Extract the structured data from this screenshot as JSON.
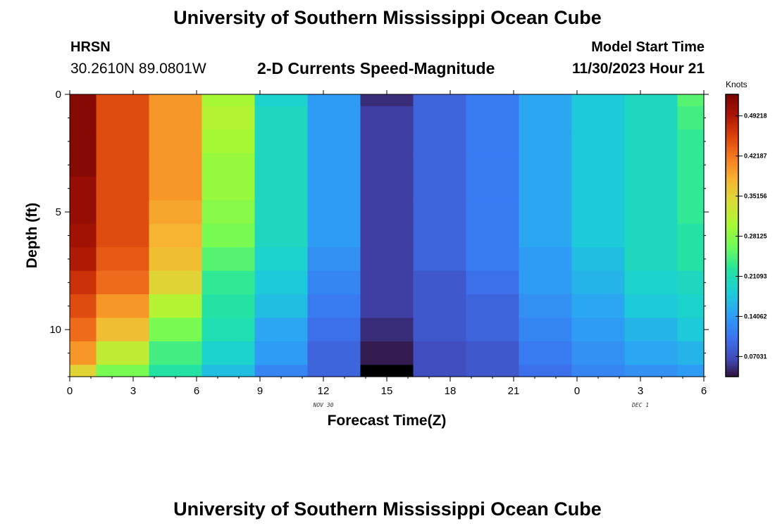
{
  "header": {
    "title": "University of Southern Mississippi Ocean Cube",
    "station_name": "HRSN",
    "station_coords": "30.2610N  89.0801W",
    "subtitle": "2-D Currents Speed-Magnitude",
    "model_start_label": "Model Start Time",
    "model_start_value": "11/30/2023 Hour 21"
  },
  "footer": {
    "title": "University of Southern Mississippi Ocean Cube"
  },
  "chart_data": {
    "type": "heatmap",
    "title": "2-D Currents Speed-Magnitude",
    "xlabel": "Forecast Time(Z)",
    "ylabel": "Depth (ft)",
    "colorbar_label": "Knots",
    "x_ticks": [
      "0",
      "3",
      "6",
      "9",
      "12",
      "15",
      "18",
      "21",
      "0",
      "3",
      "6"
    ],
    "x_date_labels": [
      {
        "text": "NOV 30",
        "at_tick_index": 4
      },
      {
        "text": "DEC 1",
        "at_tick_index": 9
      }
    ],
    "y_ticks": [
      "0",
      "5",
      "10"
    ],
    "y_range_ft": [
      0,
      12
    ],
    "x_range_hours": [
      0,
      30
    ],
    "colorbar_ticks": [
      "0.07031",
      "0.14062",
      "0.21093",
      "0.28125",
      "0.35156",
      "0.42187",
      "0.49218"
    ],
    "colorbar_range_knots": [
      0.035,
      0.53
    ],
    "column_times_hours": [
      0,
      2.5,
      5,
      7.5,
      10,
      12.5,
      15,
      17.5,
      20,
      22.5,
      25,
      27.5,
      30
    ],
    "depth_layers_ft": [
      0,
      0.5,
      1.5,
      2.5,
      3.5,
      4.5,
      5.5,
      6.5,
      7.5,
      8.5,
      9.5,
      10.5,
      11.5,
      12
    ],
    "speed_knots": [
      [
        0.52,
        0.45,
        0.4,
        0.3,
        0.19,
        0.14,
        0.05,
        0.09,
        0.11,
        0.15,
        0.18,
        0.2,
        0.25
      ],
      [
        0.52,
        0.45,
        0.4,
        0.31,
        0.2,
        0.14,
        0.06,
        0.09,
        0.11,
        0.15,
        0.18,
        0.2,
        0.24
      ],
      [
        0.52,
        0.45,
        0.4,
        0.3,
        0.2,
        0.14,
        0.06,
        0.09,
        0.11,
        0.15,
        0.18,
        0.2,
        0.23
      ],
      [
        0.52,
        0.45,
        0.4,
        0.29,
        0.2,
        0.14,
        0.06,
        0.09,
        0.11,
        0.15,
        0.18,
        0.2,
        0.23
      ],
      [
        0.51,
        0.45,
        0.4,
        0.29,
        0.2,
        0.14,
        0.06,
        0.09,
        0.11,
        0.15,
        0.18,
        0.2,
        0.23
      ],
      [
        0.51,
        0.45,
        0.39,
        0.28,
        0.2,
        0.14,
        0.06,
        0.09,
        0.11,
        0.15,
        0.18,
        0.2,
        0.23
      ],
      [
        0.5,
        0.45,
        0.38,
        0.27,
        0.2,
        0.14,
        0.06,
        0.09,
        0.11,
        0.15,
        0.18,
        0.2,
        0.22
      ],
      [
        0.49,
        0.44,
        0.37,
        0.25,
        0.19,
        0.13,
        0.06,
        0.09,
        0.11,
        0.14,
        0.17,
        0.2,
        0.22
      ],
      [
        0.47,
        0.43,
        0.35,
        0.23,
        0.18,
        0.12,
        0.06,
        0.08,
        0.1,
        0.14,
        0.16,
        0.19,
        0.2
      ],
      [
        0.45,
        0.4,
        0.31,
        0.22,
        0.17,
        0.11,
        0.06,
        0.08,
        0.09,
        0.13,
        0.15,
        0.18,
        0.19
      ],
      [
        0.43,
        0.37,
        0.27,
        0.21,
        0.15,
        0.1,
        0.05,
        0.08,
        0.09,
        0.12,
        0.14,
        0.16,
        0.18
      ],
      [
        0.4,
        0.32,
        0.24,
        0.19,
        0.14,
        0.09,
        0.04,
        0.07,
        0.08,
        0.11,
        0.13,
        0.15,
        0.16
      ],
      [
        0.35,
        0.27,
        0.22,
        0.17,
        0.12,
        0.09,
        0.02,
        0.07,
        0.08,
        0.1,
        0.12,
        0.13,
        0.14
      ]
    ]
  }
}
